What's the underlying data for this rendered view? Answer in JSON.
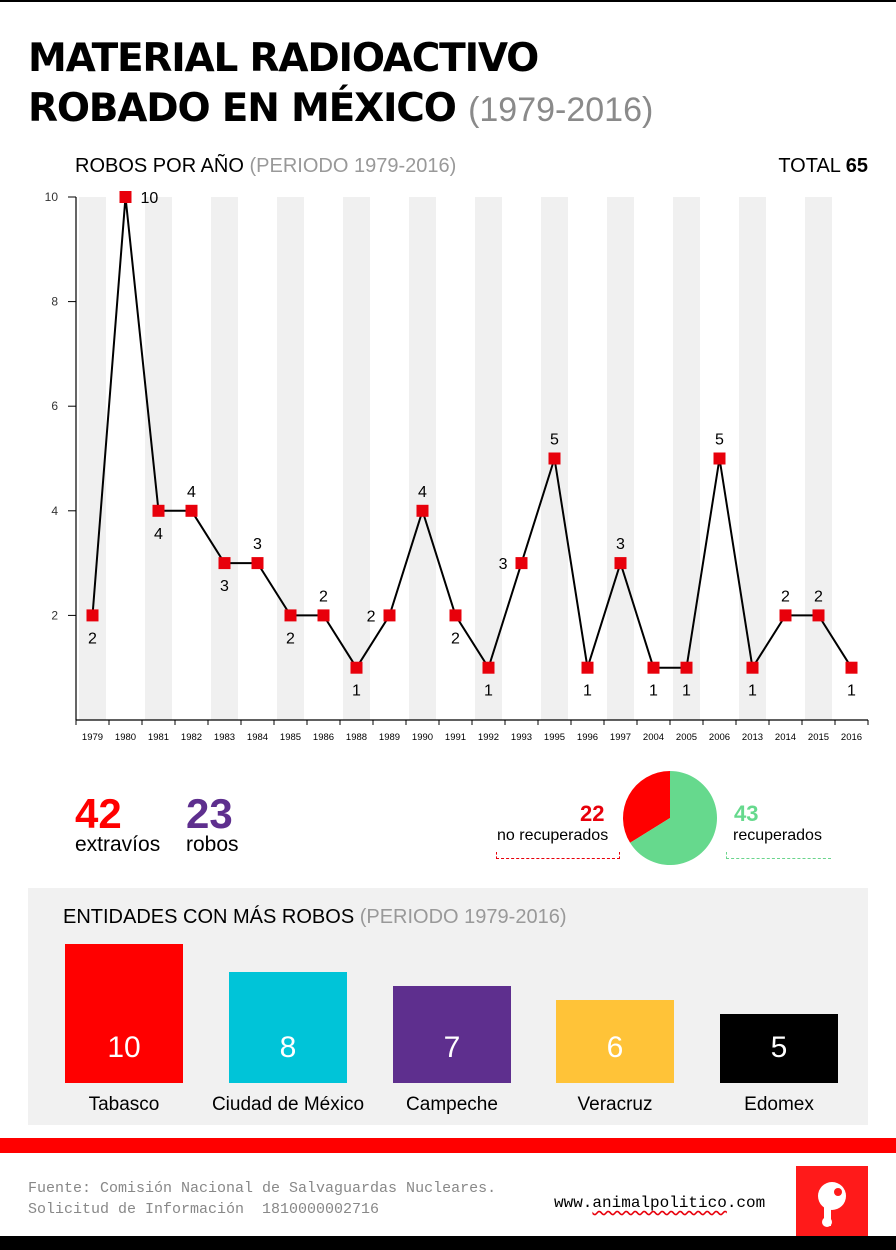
{
  "header": {
    "title_line1": "MATERIAL RADIOACTIVO",
    "title_line2": "ROBADO EN MÉXICO",
    "title_years": "(1979-2016)"
  },
  "section1": {
    "label": "ROBOS POR AÑO",
    "period": "(PERIODO 1979-2016)",
    "total_label": "TOTAL",
    "total_value": "65"
  },
  "chart_data": [
    {
      "type": "line",
      "title": "ROBOS POR AÑO (PERIODO 1979-2016)",
      "categories": [
        "1979",
        "1980",
        "1981",
        "1982",
        "1983",
        "1984",
        "1985",
        "1986",
        "1988",
        "1989",
        "1990",
        "1991",
        "1992",
        "1993",
        "1995",
        "1996",
        "1997",
        "2004",
        "2005",
        "2006",
        "2013",
        "2014",
        "2015",
        "2016"
      ],
      "values": [
        2,
        10,
        4,
        4,
        3,
        3,
        2,
        2,
        1,
        2,
        4,
        2,
        1,
        3,
        5,
        1,
        3,
        1,
        1,
        5,
        1,
        2,
        2,
        1
      ],
      "yticks": [
        2,
        4,
        6,
        8,
        10
      ],
      "ylim": [
        0,
        10
      ],
      "color": "#e8000b",
      "grid": "alternating vertical bands"
    },
    {
      "type": "pie",
      "slices": [
        {
          "label": "no recuperados",
          "value": 22,
          "color": "#ff0000"
        },
        {
          "label": "recuperados",
          "value": 43,
          "color": "#66d98d"
        }
      ]
    },
    {
      "type": "bar",
      "title": "ENTIDADES CON MÁS ROBOS (PERIODO 1979-2016)",
      "categories": [
        "Tabasco",
        "Ciudad de México",
        "Campeche",
        "Veracruz",
        "Edomex"
      ],
      "values": [
        10,
        8,
        7,
        6,
        5
      ],
      "colors": [
        "#ff0000",
        "#00c4d8",
        "#5e2f8e",
        "#ffc338",
        "#000000"
      ]
    }
  ],
  "stats": {
    "extravios_value": "42",
    "extravios_label": "extravíos",
    "extravios_color": "#ff0000",
    "robos_value": "23",
    "robos_label": "robos",
    "robos_color": "#5e2f8e"
  },
  "pie_labels": {
    "no_rec_value": "22",
    "no_rec_label": "no recuperados",
    "rec_value": "43",
    "rec_label": "recuperados"
  },
  "section2": {
    "label": "ENTIDADES CON MÁS ROBOS",
    "period": "(PERIODO 1979-2016)"
  },
  "footer": {
    "source_line1": "Fuente: Comisión Nacional de Salvaguardas Nucleares.",
    "source_line2": "Solicitud de Información  1810000002716",
    "site_prefix": "www.",
    "site_main": "animalpolitico",
    "site_suffix": ".com"
  }
}
